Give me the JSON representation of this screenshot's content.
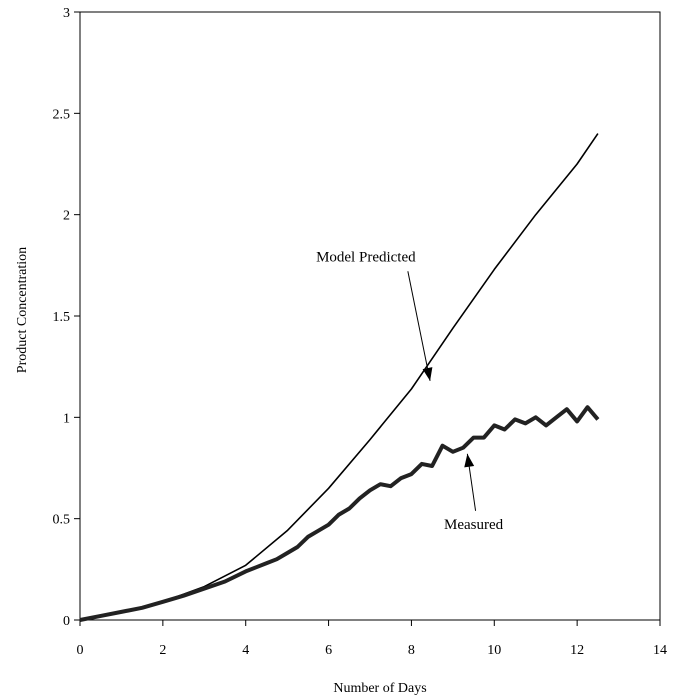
{
  "chart_data": {
    "type": "line",
    "xlabel": "Number of Days",
    "ylabel": "Product Concentration",
    "xlim": [
      0,
      14
    ],
    "ylim": [
      0,
      3
    ],
    "xticks": [
      0,
      2,
      4,
      6,
      8,
      10,
      12,
      14
    ],
    "yticks": [
      0,
      0.5,
      1,
      1.5,
      2,
      2.5,
      3
    ],
    "ytick_labels": [
      "0",
      "0.5",
      "1",
      "1.5",
      "2",
      "2.5",
      "3"
    ],
    "grid": false,
    "legend": "none",
    "series": [
      {
        "name": "Model Predicted",
        "x": [
          0,
          1,
          2,
          3,
          4,
          5,
          6,
          7,
          8,
          9,
          10,
          11,
          12,
          12.5
        ],
        "y": [
          0,
          0.04,
          0.09,
          0.165,
          0.27,
          0.44,
          0.65,
          0.89,
          1.14,
          1.44,
          1.73,
          2.0,
          2.25,
          2.4
        ]
      },
      {
        "name": "Measured",
        "x": [
          0,
          0.5,
          1,
          1.5,
          2,
          2.5,
          3,
          3.5,
          4,
          4.25,
          4.5,
          4.75,
          5,
          5.25,
          5.5,
          5.75,
          6,
          6.25,
          6.5,
          6.75,
          7,
          7.25,
          7.5,
          7.75,
          8,
          8.25,
          8.5,
          8.75,
          9,
          9.25,
          9.5,
          9.75,
          10,
          10.25,
          10.5,
          10.75,
          11,
          11.25,
          11.5,
          11.75,
          12,
          12.25,
          12.5
        ],
        "y": [
          0,
          0.02,
          0.04,
          0.06,
          0.09,
          0.12,
          0.155,
          0.19,
          0.24,
          0.26,
          0.28,
          0.3,
          0.33,
          0.36,
          0.41,
          0.44,
          0.47,
          0.52,
          0.55,
          0.6,
          0.64,
          0.67,
          0.66,
          0.7,
          0.72,
          0.77,
          0.76,
          0.86,
          0.83,
          0.85,
          0.9,
          0.9,
          0.96,
          0.94,
          0.99,
          0.97,
          1.0,
          0.96,
          1.0,
          1.04,
          0.98,
          1.05,
          0.99
        ]
      }
    ],
    "annotations": [
      {
        "text": "Model Predicted",
        "x": 6.9,
        "y": 1.77,
        "arrow_to": [
          8.45,
          1.18
        ]
      },
      {
        "text": "Measured",
        "x": 9.5,
        "y": 0.45,
        "arrow_to": [
          9.35,
          0.82
        ]
      }
    ]
  }
}
